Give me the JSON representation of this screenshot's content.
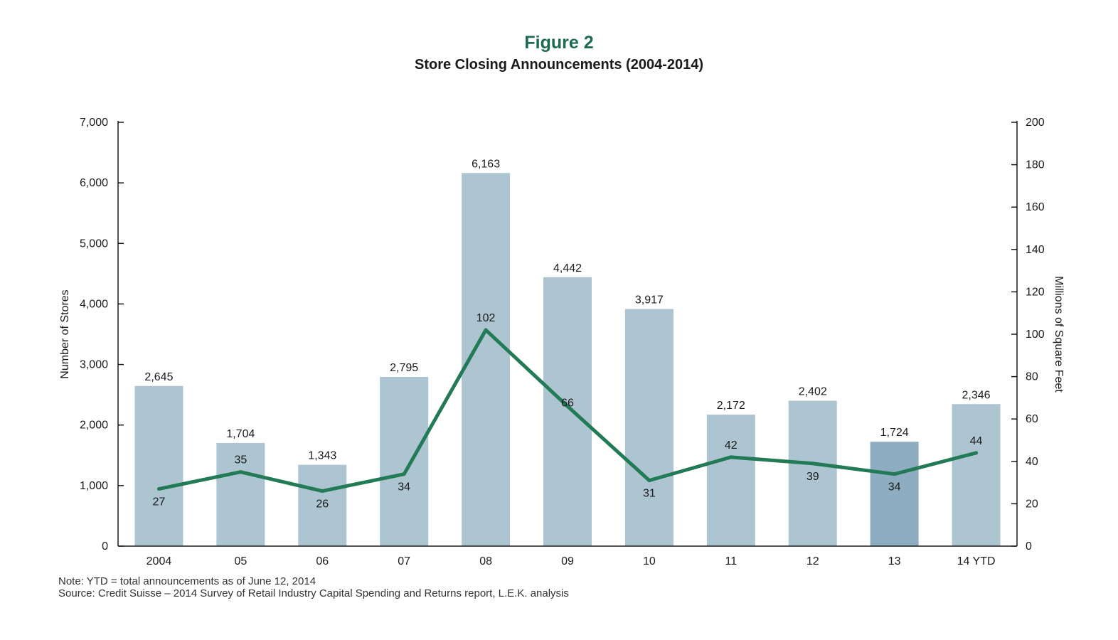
{
  "figure_label": "Figure 2",
  "chart_data": {
    "type": "bar",
    "title": "Store Closing Announcements (2004-2014)",
    "categories": [
      "2004",
      "05",
      "06",
      "07",
      "08",
      "09",
      "10",
      "11",
      "12",
      "13",
      "14 YTD"
    ],
    "series": [
      {
        "name": "Number of Stores",
        "type": "bar",
        "axis": "left",
        "values": [
          2645,
          1704,
          1343,
          2795,
          6163,
          4442,
          3917,
          2172,
          2402,
          1724,
          2346
        ],
        "labels": [
          "2,645",
          "1,704",
          "1,343",
          "2,795",
          "6,163",
          "4,442",
          "3,917",
          "2,172",
          "2,402",
          "1,724",
          "2,346"
        ],
        "highlight_index": 9
      },
      {
        "name": "Millions of Square Feet",
        "type": "line",
        "axis": "right",
        "values": [
          27,
          35,
          26,
          34,
          102,
          66,
          31,
          42,
          39,
          34,
          44
        ],
        "labels": [
          "27",
          "35",
          "26",
          "34",
          "102",
          "66",
          "31",
          "42",
          "39",
          "34",
          "44"
        ]
      }
    ],
    "ylabel": "Number of Stores",
    "y2label": "Millions of Square Feet",
    "ylim": [
      0,
      7000
    ],
    "y2lim": [
      0,
      200
    ],
    "yticks": [
      0,
      1000,
      2000,
      3000,
      4000,
      5000,
      6000,
      7000
    ],
    "ytick_labels": [
      "0",
      "1,000",
      "2,000",
      "3,000",
      "4,000",
      "5,000",
      "6,000",
      "7,000"
    ],
    "y2ticks": [
      0,
      20,
      40,
      60,
      80,
      100,
      120,
      140,
      160,
      180,
      200
    ],
    "y2tick_labels": [
      "0",
      "20",
      "40",
      "60",
      "80",
      "100",
      "120",
      "140",
      "160",
      "180",
      "200"
    ],
    "grid": false,
    "legend": "none"
  },
  "colors": {
    "bar": "#adc4d1",
    "bar_highlight": "#8eadc1",
    "line": "#237a57",
    "title": "#1d6b4f",
    "axis": "#1a1a1a"
  },
  "notes": {
    "note": "Note: YTD = total announcements as of June 12, 2014",
    "source": "Source: Credit Suisse – 2014 Survey of Retail Industry Capital Spending and Returns report, L.E.K. analysis"
  }
}
